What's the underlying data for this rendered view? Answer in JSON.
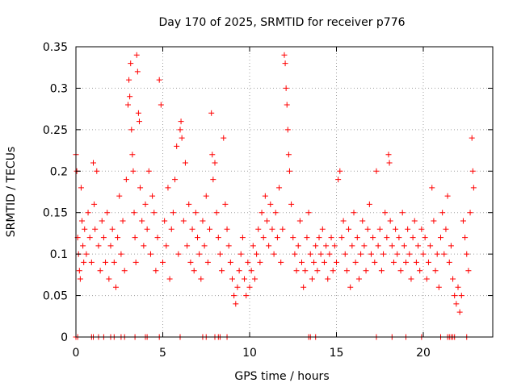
{
  "chart_data": {
    "type": "scatter",
    "title": "Day 170 of 2025, SRMTID for receiver p776",
    "xlabel": "GPS time / hours",
    "ylabel": "SRMTID / TECUs",
    "xlim": [
      0,
      24
    ],
    "ylim": [
      0,
      0.35
    ],
    "x_ticks": [
      0,
      5,
      10,
      15,
      20
    ],
    "x_tick_labels": [
      "0",
      "5",
      "10",
      "15",
      "20"
    ],
    "y_ticks": [
      0,
      0.05,
      0.1,
      0.15,
      0.2,
      0.25,
      0.3,
      0.35
    ],
    "y_tick_labels": [
      "0",
      "0.05",
      "0.1",
      "0.15",
      "0.2",
      "0.25",
      "0.3",
      "0.35"
    ],
    "grid": true,
    "marker": "+",
    "series_color": "#ff0000",
    "series": [
      {
        "name": "SRMTID",
        "points": [
          [
            0.0,
            0.22
          ],
          [
            0.05,
            0.2
          ],
          [
            0.1,
            0.12
          ],
          [
            0.15,
            0.1
          ],
          [
            0.2,
            0.08
          ],
          [
            0.25,
            0.07
          ],
          [
            0.3,
            0.18
          ],
          [
            0.35,
            0.14
          ],
          [
            0.4,
            0.11
          ],
          [
            0.45,
            0.09
          ],
          [
            0.5,
            0.13
          ],
          [
            0.6,
            0.1
          ],
          [
            0.7,
            0.15
          ],
          [
            0.8,
            0.12
          ],
          [
            0.9,
            0.09
          ],
          [
            1.0,
            0.21
          ],
          [
            1.05,
            0.16
          ],
          [
            1.1,
            0.13
          ],
          [
            1.2,
            0.2
          ],
          [
            1.3,
            0.11
          ],
          [
            1.4,
            0.08
          ],
          [
            1.5,
            0.14
          ],
          [
            1.6,
            0.12
          ],
          [
            1.7,
            0.09
          ],
          [
            1.8,
            0.15
          ],
          [
            1.9,
            0.07
          ],
          [
            2.0,
            0.11
          ],
          [
            2.1,
            0.13
          ],
          [
            2.2,
            0.09
          ],
          [
            2.3,
            0.06
          ],
          [
            2.4,
            0.12
          ],
          [
            2.5,
            0.17
          ],
          [
            2.6,
            0.1
          ],
          [
            2.7,
            0.14
          ],
          [
            2.8,
            0.08
          ],
          [
            2.9,
            0.19
          ],
          [
            3.0,
            0.28
          ],
          [
            3.05,
            0.31
          ],
          [
            3.1,
            0.29
          ],
          [
            3.15,
            0.33
          ],
          [
            3.2,
            0.25
          ],
          [
            3.25,
            0.22
          ],
          [
            3.3,
            0.2
          ],
          [
            3.35,
            0.15
          ],
          [
            3.4,
            0.12
          ],
          [
            3.45,
            0.09
          ],
          [
            3.5,
            0.34
          ],
          [
            3.55,
            0.32
          ],
          [
            3.6,
            0.27
          ],
          [
            3.65,
            0.26
          ],
          [
            3.7,
            0.18
          ],
          [
            3.8,
            0.14
          ],
          [
            3.9,
            0.11
          ],
          [
            4.0,
            0.16
          ],
          [
            4.1,
            0.13
          ],
          [
            4.2,
            0.2
          ],
          [
            4.3,
            0.1
          ],
          [
            4.4,
            0.17
          ],
          [
            4.5,
            0.15
          ],
          [
            4.6,
            0.08
          ],
          [
            4.7,
            0.12
          ],
          [
            4.8,
            0.31
          ],
          [
            4.9,
            0.28
          ],
          [
            5.0,
            0.09
          ],
          [
            5.1,
            0.14
          ],
          [
            5.2,
            0.11
          ],
          [
            5.3,
            0.18
          ],
          [
            5.4,
            0.07
          ],
          [
            5.5,
            0.13
          ],
          [
            5.6,
            0.15
          ],
          [
            5.7,
            0.19
          ],
          [
            5.8,
            0.23
          ],
          [
            5.9,
            0.1
          ],
          [
            6.0,
            0.25
          ],
          [
            6.05,
            0.26
          ],
          [
            6.1,
            0.24
          ],
          [
            6.2,
            0.14
          ],
          [
            6.3,
            0.21
          ],
          [
            6.4,
            0.11
          ],
          [
            6.5,
            0.16
          ],
          [
            6.6,
            0.09
          ],
          [
            6.7,
            0.13
          ],
          [
            6.8,
            0.08
          ],
          [
            6.9,
            0.15
          ],
          [
            7.0,
            0.12
          ],
          [
            7.1,
            0.1
          ],
          [
            7.2,
            0.07
          ],
          [
            7.3,
            0.14
          ],
          [
            7.4,
            0.11
          ],
          [
            7.5,
            0.17
          ],
          [
            7.6,
            0.09
          ],
          [
            7.7,
            0.13
          ],
          [
            7.8,
            0.27
          ],
          [
            7.85,
            0.22
          ],
          [
            7.9,
            0.19
          ],
          [
            8.0,
            0.21
          ],
          [
            8.1,
            0.15
          ],
          [
            8.2,
            0.12
          ],
          [
            8.3,
            0.1
          ],
          [
            8.4,
            0.08
          ],
          [
            8.5,
            0.24
          ],
          [
            8.6,
            0.16
          ],
          [
            8.7,
            0.13
          ],
          [
            8.8,
            0.11
          ],
          [
            8.9,
            0.09
          ],
          [
            9.0,
            0.07
          ],
          [
            9.1,
            0.05
          ],
          [
            9.2,
            0.04
          ],
          [
            9.3,
            0.06
          ],
          [
            9.4,
            0.08
          ],
          [
            9.5,
            0.1
          ],
          [
            9.6,
            0.12
          ],
          [
            9.7,
            0.07
          ],
          [
            9.8,
            0.05
          ],
          [
            9.9,
            0.09
          ],
          [
            10.0,
            0.06
          ],
          [
            10.1,
            0.08
          ],
          [
            10.2,
            0.11
          ],
          [
            10.3,
            0.07
          ],
          [
            10.4,
            0.1
          ],
          [
            10.5,
            0.13
          ],
          [
            10.6,
            0.09
          ],
          [
            10.7,
            0.15
          ],
          [
            10.8,
            0.12
          ],
          [
            10.9,
            0.17
          ],
          [
            11.0,
            0.14
          ],
          [
            11.1,
            0.11
          ],
          [
            11.2,
            0.16
          ],
          [
            11.3,
            0.13
          ],
          [
            11.4,
            0.1
          ],
          [
            11.5,
            0.15
          ],
          [
            11.6,
            0.12
          ],
          [
            11.7,
            0.18
          ],
          [
            11.8,
            0.09
          ],
          [
            11.9,
            0.13
          ],
          [
            12.0,
            0.34
          ],
          [
            12.05,
            0.33
          ],
          [
            12.1,
            0.3
          ],
          [
            12.15,
            0.28
          ],
          [
            12.2,
            0.25
          ],
          [
            12.25,
            0.22
          ],
          [
            12.3,
            0.2
          ],
          [
            12.4,
            0.16
          ],
          [
            12.5,
            0.12
          ],
          [
            12.6,
            0.1
          ],
          [
            12.7,
            0.08
          ],
          [
            12.8,
            0.11
          ],
          [
            12.9,
            0.14
          ],
          [
            13.0,
            0.09
          ],
          [
            13.1,
            0.06
          ],
          [
            13.2,
            0.08
          ],
          [
            13.3,
            0.12
          ],
          [
            13.4,
            0.15
          ],
          [
            13.5,
            0.1
          ],
          [
            13.6,
            0.07
          ],
          [
            13.7,
            0.09
          ],
          [
            13.8,
            0.11
          ],
          [
            13.9,
            0.08
          ],
          [
            14.0,
            0.12
          ],
          [
            14.1,
            0.1
          ],
          [
            14.2,
            0.13
          ],
          [
            14.3,
            0.09
          ],
          [
            14.4,
            0.11
          ],
          [
            14.5,
            0.07
          ],
          [
            14.6,
            0.1
          ],
          [
            14.7,
            0.12
          ],
          [
            14.8,
            0.08
          ],
          [
            14.9,
            0.11
          ],
          [
            15.0,
            0.09
          ],
          [
            15.1,
            0.19
          ],
          [
            15.2,
            0.2
          ],
          [
            15.3,
            0.12
          ],
          [
            15.4,
            0.14
          ],
          [
            15.5,
            0.1
          ],
          [
            15.6,
            0.08
          ],
          [
            15.7,
            0.13
          ],
          [
            15.8,
            0.06
          ],
          [
            15.9,
            0.11
          ],
          [
            16.0,
            0.15
          ],
          [
            16.1,
            0.09
          ],
          [
            16.2,
            0.12
          ],
          [
            16.3,
            0.07
          ],
          [
            16.4,
            0.1
          ],
          [
            16.5,
            0.14
          ],
          [
            16.6,
            0.11
          ],
          [
            16.7,
            0.08
          ],
          [
            16.8,
            0.13
          ],
          [
            16.9,
            0.16
          ],
          [
            17.0,
            0.1
          ],
          [
            17.1,
            0.12
          ],
          [
            17.2,
            0.09
          ],
          [
            17.3,
            0.2
          ],
          [
            17.4,
            0.11
          ],
          [
            17.5,
            0.13
          ],
          [
            17.6,
            0.08
          ],
          [
            17.7,
            0.1
          ],
          [
            17.8,
            0.15
          ],
          [
            17.9,
            0.12
          ],
          [
            18.0,
            0.22
          ],
          [
            18.05,
            0.21
          ],
          [
            18.1,
            0.14
          ],
          [
            18.2,
            0.11
          ],
          [
            18.3,
            0.09
          ],
          [
            18.4,
            0.13
          ],
          [
            18.5,
            0.1
          ],
          [
            18.6,
            0.12
          ],
          [
            18.7,
            0.08
          ],
          [
            18.8,
            0.15
          ],
          [
            18.9,
            0.11
          ],
          [
            19.0,
            0.09
          ],
          [
            19.1,
            0.13
          ],
          [
            19.2,
            0.1
          ],
          [
            19.3,
            0.07
          ],
          [
            19.4,
            0.12
          ],
          [
            19.5,
            0.14
          ],
          [
            19.6,
            0.09
          ],
          [
            19.7,
            0.11
          ],
          [
            19.8,
            0.08
          ],
          [
            19.9,
            0.13
          ],
          [
            20.0,
            0.1
          ],
          [
            20.1,
            0.12
          ],
          [
            20.2,
            0.07
          ],
          [
            20.3,
            0.09
          ],
          [
            20.4,
            0.11
          ],
          [
            20.5,
            0.18
          ],
          [
            20.6,
            0.14
          ],
          [
            20.7,
            0.08
          ],
          [
            20.8,
            0.1
          ],
          [
            20.9,
            0.06
          ],
          [
            21.0,
            0.12
          ],
          [
            21.1,
            0.15
          ],
          [
            21.2,
            0.1
          ],
          [
            21.3,
            0.13
          ],
          [
            21.4,
            0.17
          ],
          [
            21.5,
            0.09
          ],
          [
            21.6,
            0.11
          ],
          [
            21.7,
            0.07
          ],
          [
            21.8,
            0.05
          ],
          [
            21.9,
            0.04
          ],
          [
            22.0,
            0.06
          ],
          [
            22.1,
            0.03
          ],
          [
            22.2,
            0.05
          ],
          [
            22.3,
            0.14
          ],
          [
            22.4,
            0.12
          ],
          [
            22.5,
            0.1
          ],
          [
            22.6,
            0.08
          ],
          [
            22.7,
            0.15
          ],
          [
            22.8,
            0.24
          ],
          [
            22.85,
            0.2
          ],
          [
            22.9,
            0.18
          ],
          [
            0.0,
            0.0
          ],
          [
            0.1,
            0.0
          ],
          [
            0.9,
            0.0
          ],
          [
            1.0,
            0.0
          ],
          [
            1.3,
            0.0
          ],
          [
            1.6,
            0.0
          ],
          [
            2.0,
            0.0
          ],
          [
            2.2,
            0.0
          ],
          [
            2.6,
            0.0
          ],
          [
            2.8,
            0.0
          ],
          [
            3.4,
            0.0
          ],
          [
            4.0,
            0.0
          ],
          [
            4.1,
            0.0
          ],
          [
            4.8,
            0.0
          ],
          [
            6.0,
            0.0
          ],
          [
            7.3,
            0.0
          ],
          [
            7.5,
            0.0
          ],
          [
            8.0,
            0.0
          ],
          [
            8.2,
            0.0
          ],
          [
            8.3,
            0.0
          ],
          [
            8.7,
            0.0
          ],
          [
            13.4,
            0.0
          ],
          [
            13.5,
            0.0
          ],
          [
            13.8,
            0.0
          ],
          [
            17.3,
            0.0
          ],
          [
            18.2,
            0.0
          ],
          [
            19.0,
            0.0
          ],
          [
            19.9,
            0.0
          ],
          [
            21.0,
            0.0
          ],
          [
            21.4,
            0.0
          ],
          [
            21.5,
            0.0
          ],
          [
            21.6,
            0.0
          ],
          [
            21.7,
            0.0
          ],
          [
            21.8,
            0.0
          ],
          [
            22.5,
            0.0
          ]
        ]
      }
    ]
  }
}
